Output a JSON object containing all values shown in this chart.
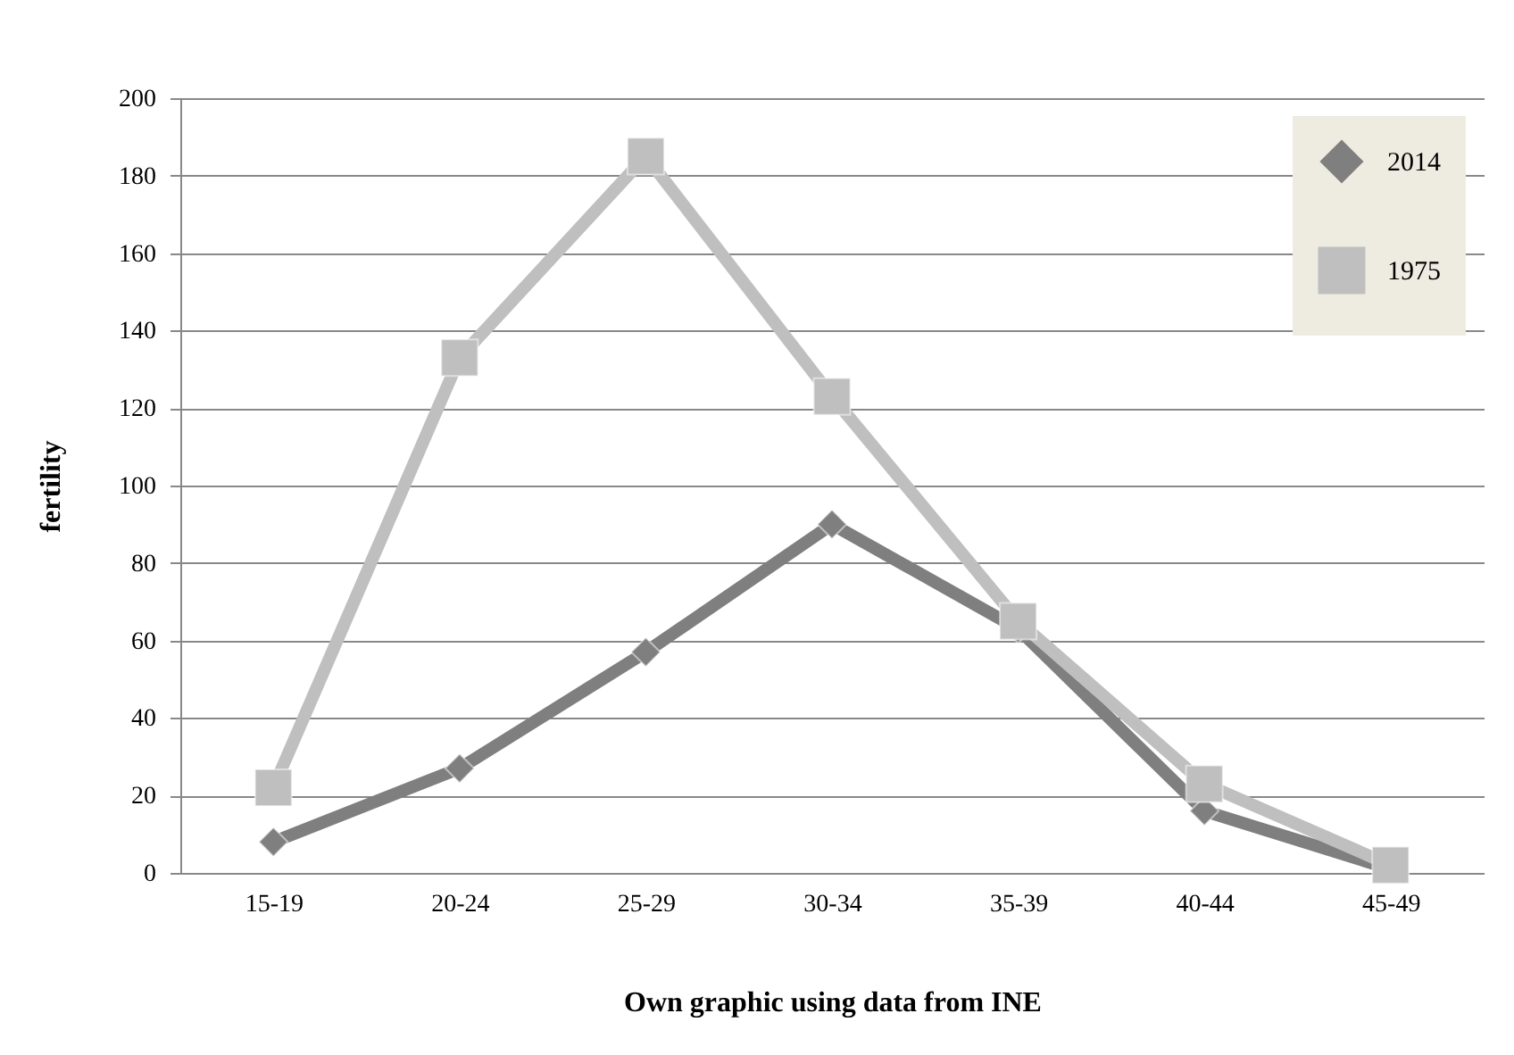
{
  "chart_data": {
    "type": "line",
    "xlabel": "Own graphic using data from INE",
    "ylabel": "fertility",
    "categories": [
      "15-19",
      "20-24",
      "25-29",
      "30-34",
      "35-39",
      "40-44",
      "45-49"
    ],
    "series": [
      {
        "name": "2014",
        "color": "#7f7f7f",
        "marker": "diamond",
        "values": [
          8,
          27,
          57,
          90,
          63,
          16,
          1
        ]
      },
      {
        "name": "1975",
        "color": "#bfbfbf",
        "marker": "square",
        "values": [
          22,
          133,
          185,
          123,
          65,
          23,
          2
        ]
      }
    ],
    "ylim": [
      0,
      200
    ],
    "yticks": [
      0,
      20,
      40,
      60,
      80,
      100,
      120,
      140,
      160,
      180,
      200
    ],
    "grid": "y",
    "legend": "top right"
  }
}
